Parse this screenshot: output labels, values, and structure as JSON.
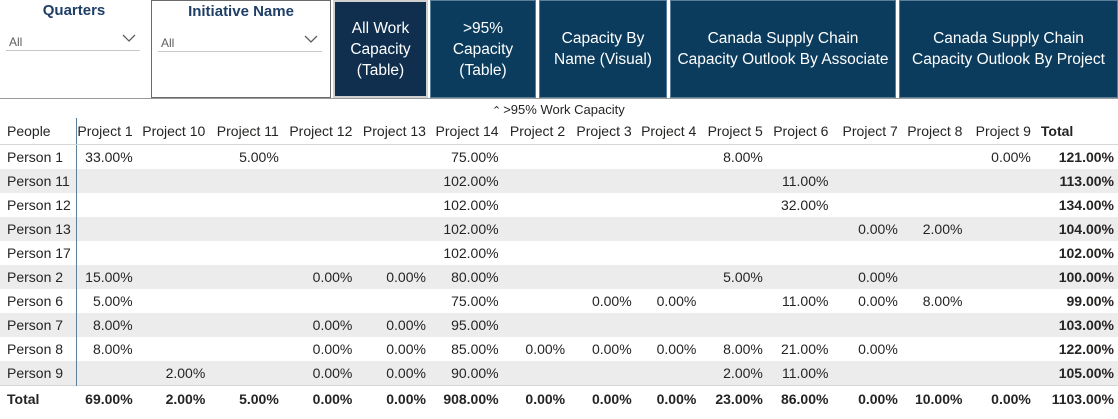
{
  "slicers": {
    "quarters": {
      "title": "Quarters",
      "value": "All"
    },
    "initiative": {
      "title": "Initiative Name",
      "value": "All"
    }
  },
  "nav_buttons": {
    "all_work": "All Work Capacity (Table)",
    "over95": ">95% Capacity (Table)",
    "by_name": "Capacity By Name (Visual)",
    "by_associate": "Canada Supply Chain Capacity Outlook By Associate",
    "by_project": "Canada Supply Chain Capacity Outlook By Project"
  },
  "matrix": {
    "title": ">95% Work Capacity",
    "row_header": "People",
    "columns": [
      "Project 1",
      "Project 10",
      "Project 11",
      "Project 12",
      "Project 13",
      "Project 14",
      "Project 2",
      "Project 3",
      "Project 4",
      "Project 5",
      "Project 6",
      "Project 7",
      "Project 8",
      "Project 9"
    ],
    "total_label": "Total",
    "rows": [
      {
        "name": "Person 1",
        "cells": [
          "33.00%",
          "",
          "5.00%",
          "",
          "",
          "75.00%",
          "",
          "",
          "",
          "8.00%",
          "",
          "",
          "",
          "0.00%"
        ],
        "total": "121.00%"
      },
      {
        "name": "Person 11",
        "cells": [
          "",
          "",
          "",
          "",
          "",
          "102.00%",
          "",
          "",
          "",
          "",
          "11.00%",
          "",
          "",
          ""
        ],
        "total": "113.00%"
      },
      {
        "name": "Person 12",
        "cells": [
          "",
          "",
          "",
          "",
          "",
          "102.00%",
          "",
          "",
          "",
          "",
          "32.00%",
          "",
          "",
          ""
        ],
        "total": "134.00%"
      },
      {
        "name": "Person 13",
        "cells": [
          "",
          "",
          "",
          "",
          "",
          "102.00%",
          "",
          "",
          "",
          "",
          "",
          "0.00%",
          "2.00%",
          ""
        ],
        "total": "104.00%"
      },
      {
        "name": "Person 17",
        "cells": [
          "",
          "",
          "",
          "",
          "",
          "102.00%",
          "",
          "",
          "",
          "",
          "",
          "",
          "",
          ""
        ],
        "total": "102.00%"
      },
      {
        "name": "Person 2",
        "cells": [
          "15.00%",
          "",
          "",
          "0.00%",
          "0.00%",
          "80.00%",
          "",
          "",
          "",
          "5.00%",
          "",
          "0.00%",
          "",
          ""
        ],
        "total": "100.00%"
      },
      {
        "name": "Person 6",
        "cells": [
          "5.00%",
          "",
          "",
          "",
          "",
          "75.00%",
          "",
          "0.00%",
          "0.00%",
          "",
          "11.00%",
          "0.00%",
          "8.00%",
          ""
        ],
        "total": "99.00%"
      },
      {
        "name": "Person 7",
        "cells": [
          "8.00%",
          "",
          "",
          "0.00%",
          "0.00%",
          "95.00%",
          "",
          "",
          "",
          "",
          "",
          "",
          "",
          ""
        ],
        "total": "103.00%"
      },
      {
        "name": "Person 8",
        "cells": [
          "8.00%",
          "",
          "",
          "0.00%",
          "0.00%",
          "85.00%",
          "0.00%",
          "0.00%",
          "0.00%",
          "8.00%",
          "21.00%",
          "0.00%",
          "",
          ""
        ],
        "total": "122.00%"
      },
      {
        "name": "Person 9",
        "cells": [
          "",
          "2.00%",
          "",
          "0.00%",
          "0.00%",
          "90.00%",
          "",
          "",
          "",
          "2.00%",
          "11.00%",
          "",
          "",
          ""
        ],
        "total": "105.00%"
      }
    ],
    "footer": {
      "label": "Total",
      "cells": [
        "69.00%",
        "2.00%",
        "5.00%",
        "0.00%",
        "0.00%",
        "908.00%",
        "0.00%",
        "0.00%",
        "0.00%",
        "23.00%",
        "86.00%",
        "0.00%",
        "10.00%",
        "0.00%"
      ],
      "total": "1103.00%"
    }
  },
  "icons": {
    "dropdown": "chevron-down-icon",
    "sort": "caret-up-icon"
  },
  "colors": {
    "nav_bg": "#0b3c5d",
    "slicer_title": "#1f3f66",
    "row_band": "#ececec"
  }
}
